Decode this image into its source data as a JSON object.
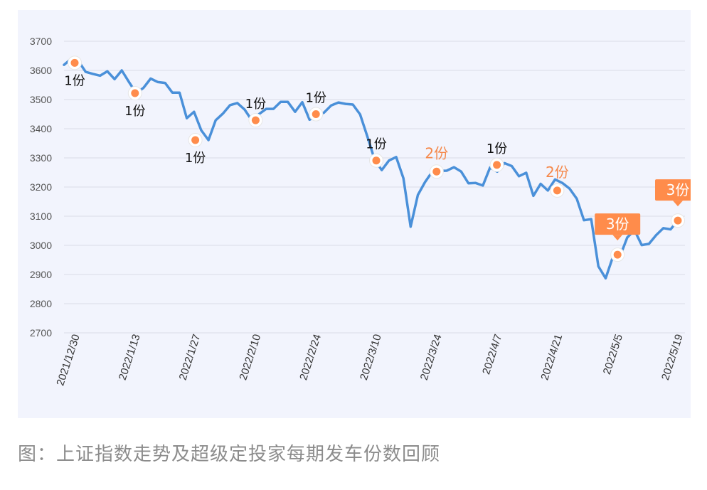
{
  "caption": "图：上证指数走势及超级定投家每期发车份数回顾",
  "colors": {
    "line": "#4a90d9",
    "marker": "#ff8c4b",
    "grid": "#d9dce8",
    "tick_text": "#555555",
    "label_dark": "#111111",
    "label_orange": "#f5884a",
    "callout_bg": "#ff8c4b",
    "callout_text": "#ffffff",
    "panel_bg": "#f2f4fd"
  },
  "chart_data": {
    "type": "line",
    "title": "",
    "xlabel": "",
    "ylabel": "",
    "ylim": [
      2700,
      3700
    ],
    "yticks": [
      "3700",
      "3600",
      "3500",
      "3400",
      "3300",
      "3200",
      "3100",
      "3000",
      "2900",
      "2800",
      "2700"
    ],
    "x_tick_labels": [
      "2021/12/30",
      "2022/1/13",
      "2022/1/27",
      "2022/2/10",
      "2022/2/24",
      "2022/3/10",
      "2022/3/24",
      "2022/4/7",
      "2022/4/21",
      "2022/5/5",
      "2022/5/19"
    ],
    "grid": true,
    "series": [
      {
        "values": [
          3619,
          3640,
          3632,
          3595,
          3588,
          3582,
          3597,
          3570,
          3600,
          3560,
          3522,
          3540,
          3572,
          3560,
          3557,
          3524,
          3524,
          3436,
          3458,
          3395,
          3361,
          3429,
          3452,
          3481,
          3488,
          3466,
          3429,
          3450,
          3468,
          3468,
          3492,
          3492,
          3458,
          3491,
          3431,
          3445,
          3455,
          3480,
          3490,
          3485,
          3483,
          3449,
          3374,
          3295,
          3258,
          3291,
          3303,
          3230,
          3064,
          3173,
          3217,
          3253,
          3255,
          3256,
          3268,
          3253,
          3213,
          3214,
          3205,
          3267,
          3253,
          3282,
          3272,
          3237,
          3249,
          3170,
          3211,
          3188,
          3226,
          3214,
          3195,
          3160,
          3086,
          3090,
          2928,
          2887,
          2960,
          2963,
          3027,
          3052,
          3001,
          3005,
          3035,
          3059,
          3055,
          3085
        ]
      }
    ],
    "buy_points": [
      {
        "date": "2021/12/30",
        "value": 3626,
        "label": "1份",
        "style": "dark-below"
      },
      {
        "date": "2022/1/13",
        "value": 3522,
        "label": "1份",
        "style": "dark-below"
      },
      {
        "date": "2022/1/27",
        "value": 3361,
        "label": "1份",
        "style": "dark-below"
      },
      {
        "date": "2022/2/10",
        "value": 3429,
        "label": "1份",
        "style": "dark-above"
      },
      {
        "date": "2022/2/24",
        "value": 3450,
        "label": "1份",
        "style": "dark-above"
      },
      {
        "date": "2022/3/10",
        "value": 3291,
        "label": "1份",
        "style": "dark-above"
      },
      {
        "date": "2022/3/24",
        "value": 3253,
        "label": "2份",
        "style": "orange-above"
      },
      {
        "date": "2022/4/7",
        "value": 3276,
        "label": "1份",
        "style": "dark-above"
      },
      {
        "date": "2022/4/21",
        "value": 3188,
        "label": "2份",
        "style": "orange-above"
      },
      {
        "date": "2022/5/5",
        "value": 2968,
        "label": "3份",
        "style": "callout"
      },
      {
        "date": "2022/5/19",
        "value": 3085,
        "label": "3份",
        "style": "callout"
      }
    ]
  }
}
